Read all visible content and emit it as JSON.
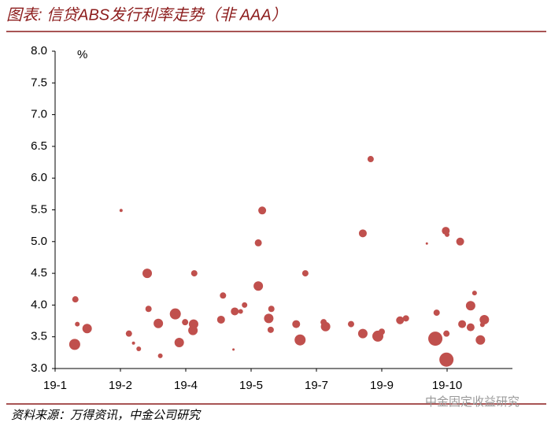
{
  "chart_data": {
    "type": "scatter",
    "title": "图表: 信贷ABS发行利率走势（非 AAA）",
    "unit": "%",
    "source": "资料来源：万得资讯，中金公司研究",
    "watermark": "中金固定收益研究",
    "xlim": [
      0,
      7
    ],
    "xticks": [
      {
        "value": 0,
        "label": "19-1"
      },
      {
        "value": 1,
        "label": "19-2"
      },
      {
        "value": 2,
        "label": "19-4"
      },
      {
        "value": 3,
        "label": "19-5"
      },
      {
        "value": 4,
        "label": "19-7"
      },
      {
        "value": 5,
        "label": "19-9"
      },
      {
        "value": 6,
        "label": "19-10"
      }
    ],
    "ylim": [
      3,
      8
    ],
    "yticks": [
      {
        "value": 3,
        "label": "3.0"
      },
      {
        "value": 3.5,
        "label": "3.5"
      },
      {
        "value": 4,
        "label": "4.0"
      },
      {
        "value": 4.5,
        "label": "4.5"
      },
      {
        "value": 5,
        "label": "5.0"
      },
      {
        "value": 5.5,
        "label": "5.5"
      },
      {
        "value": 6,
        "label": "6.0"
      },
      {
        "value": 6.5,
        "label": "6.5"
      },
      {
        "value": 7,
        "label": "7.0"
      },
      {
        "value": 7.5,
        "label": "7.5"
      },
      {
        "value": 8,
        "label": "8.0"
      }
    ],
    "series": [
      {
        "color": "#c0504d",
        "x": [
          0.31,
          0.3,
          0.34,
          0.49,
          1.01,
          1.13,
          1.2,
          1.28,
          1.41,
          1.43,
          1.58,
          1.61,
          1.84,
          1.9,
          1.99,
          2.12,
          2.11,
          2.13,
          2.57,
          2.54,
          2.73,
          2.75,
          2.84,
          2.9,
          3.11,
          3.11,
          3.17,
          3.27,
          3.31,
          3.3,
          3.69,
          3.75,
          3.83,
          4.11,
          4.14,
          4.53,
          4.71,
          4.71,
          4.83,
          4.94,
          5.0,
          5.28,
          5.37,
          5.69,
          5.82,
          5.84,
          5.98,
          6.0,
          5.99,
          5.99,
          6.2,
          6.23,
          6.36,
          6.42,
          6.36,
          6.51,
          6.57,
          6.54
        ],
        "values": [
          4.09,
          3.38,
          3.7,
          3.63,
          5.49,
          3.55,
          3.4,
          3.31,
          4.5,
          3.94,
          3.71,
          3.2,
          3.86,
          3.41,
          3.73,
          3.7,
          3.6,
          4.5,
          4.15,
          3.77,
          3.3,
          3.9,
          3.9,
          4.0,
          4.3,
          4.98,
          5.49,
          3.79,
          3.94,
          3.61,
          3.7,
          3.45,
          4.5,
          3.73,
          3.66,
          3.7,
          5.13,
          3.55,
          6.3,
          3.51,
          3.58,
          3.76,
          3.79,
          4.97,
          3.47,
          3.88,
          5.17,
          5.11,
          3.55,
          3.14,
          5.0,
          3.7,
          3.99,
          4.19,
          3.65,
          3.45,
          3.77,
          3.69
        ],
        "sizes": [
          4,
          7,
          3,
          6,
          2,
          4,
          2,
          3,
          6,
          4,
          6,
          3,
          7,
          6,
          4,
          6,
          6,
          4,
          4,
          5,
          1.5,
          5,
          3,
          3.5,
          6,
          4.5,
          5,
          6,
          4,
          4,
          5,
          7,
          4,
          4,
          6,
          4,
          5,
          6,
          4,
          7,
          4,
          5,
          4,
          1.5,
          9,
          4,
          5,
          3,
          4,
          9,
          5,
          5,
          6,
          3,
          5,
          6,
          6,
          3
        ]
      }
    ]
  }
}
